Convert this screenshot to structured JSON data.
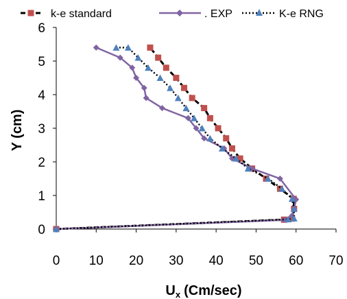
{
  "chart_data": {
    "type": "line",
    "xlabel": "U",
    "xlabel_sub": "x",
    "xlabel_unit": "(Cm/sec)",
    "ylabel": "Y (cm)",
    "xlim": [
      0,
      70
    ],
    "ylim": [
      0,
      6
    ],
    "x_ticks": [
      "0",
      "10",
      "20",
      "30",
      "40",
      "50",
      "60",
      "70"
    ],
    "y_ticks": [
      "0",
      "1",
      "2",
      "3",
      "4",
      "5",
      "6"
    ],
    "grid": false,
    "legend_position": "top",
    "colors": {
      "ke_standard": "#c0504d",
      "exp": "#8064a2",
      "ke_rng": "#4f81bd",
      "line_black": "#000000"
    },
    "series": [
      {
        "name": "k-e standard",
        "line": "dashed",
        "marker": "square",
        "points": [
          [
            0,
            0.0
          ],
          [
            57,
            0.28
          ],
          [
            59,
            0.31
          ],
          [
            59.5,
            0.6
          ],
          [
            59.4,
            0.9
          ],
          [
            56,
            1.2
          ],
          [
            52.5,
            1.5
          ],
          [
            49,
            1.8
          ],
          [
            46,
            2.1
          ],
          [
            44,
            2.4
          ],
          [
            42.5,
            2.7
          ],
          [
            40.5,
            3.0
          ],
          [
            38.5,
            3.3
          ],
          [
            37,
            3.6
          ],
          [
            34,
            3.9
          ],
          [
            32,
            4.2
          ],
          [
            30,
            4.5
          ],
          [
            27.5,
            4.8
          ],
          [
            25.5,
            5.1
          ],
          [
            23.5,
            5.4
          ]
        ]
      },
      {
        "name": ". EXP",
        "line": "solid",
        "marker": "diamond",
        "points": [
          [
            0,
            0.0
          ],
          [
            57,
            0.27
          ],
          [
            59,
            0.4
          ],
          [
            59.5,
            0.6
          ],
          [
            60,
            0.88
          ],
          [
            56,
            1.5
          ],
          [
            49,
            1.8
          ],
          [
            44,
            2.1
          ],
          [
            42,
            2.4
          ],
          [
            37,
            2.7
          ],
          [
            35,
            3.0
          ],
          [
            33,
            3.3
          ],
          [
            26.5,
            3.6
          ],
          [
            22.5,
            3.9
          ],
          [
            22,
            4.2
          ],
          [
            20,
            4.5
          ],
          [
            19,
            4.8
          ],
          [
            16,
            5.1
          ],
          [
            10,
            5.4
          ]
        ]
      },
      {
        "name": "K-e RNG",
        "line": "dotted",
        "marker": "triangle",
        "points": [
          [
            0,
            0.0
          ],
          [
            58,
            0.29
          ],
          [
            59.5,
            0.32
          ],
          [
            59.5,
            0.6
          ],
          [
            59,
            0.9
          ],
          [
            56.5,
            1.2
          ],
          [
            53,
            1.5
          ],
          [
            48,
            1.8
          ],
          [
            45,
            2.1
          ],
          [
            41.5,
            2.4
          ],
          [
            38.5,
            2.7
          ],
          [
            36.5,
            3.0
          ],
          [
            34.5,
            3.3
          ],
          [
            32.5,
            3.6
          ],
          [
            30.5,
            3.9
          ],
          [
            28.5,
            4.2
          ],
          [
            26,
            4.5
          ],
          [
            23,
            4.8
          ],
          [
            20.5,
            5.1
          ],
          [
            18,
            5.4
          ],
          [
            15,
            5.4
          ]
        ]
      }
    ]
  }
}
